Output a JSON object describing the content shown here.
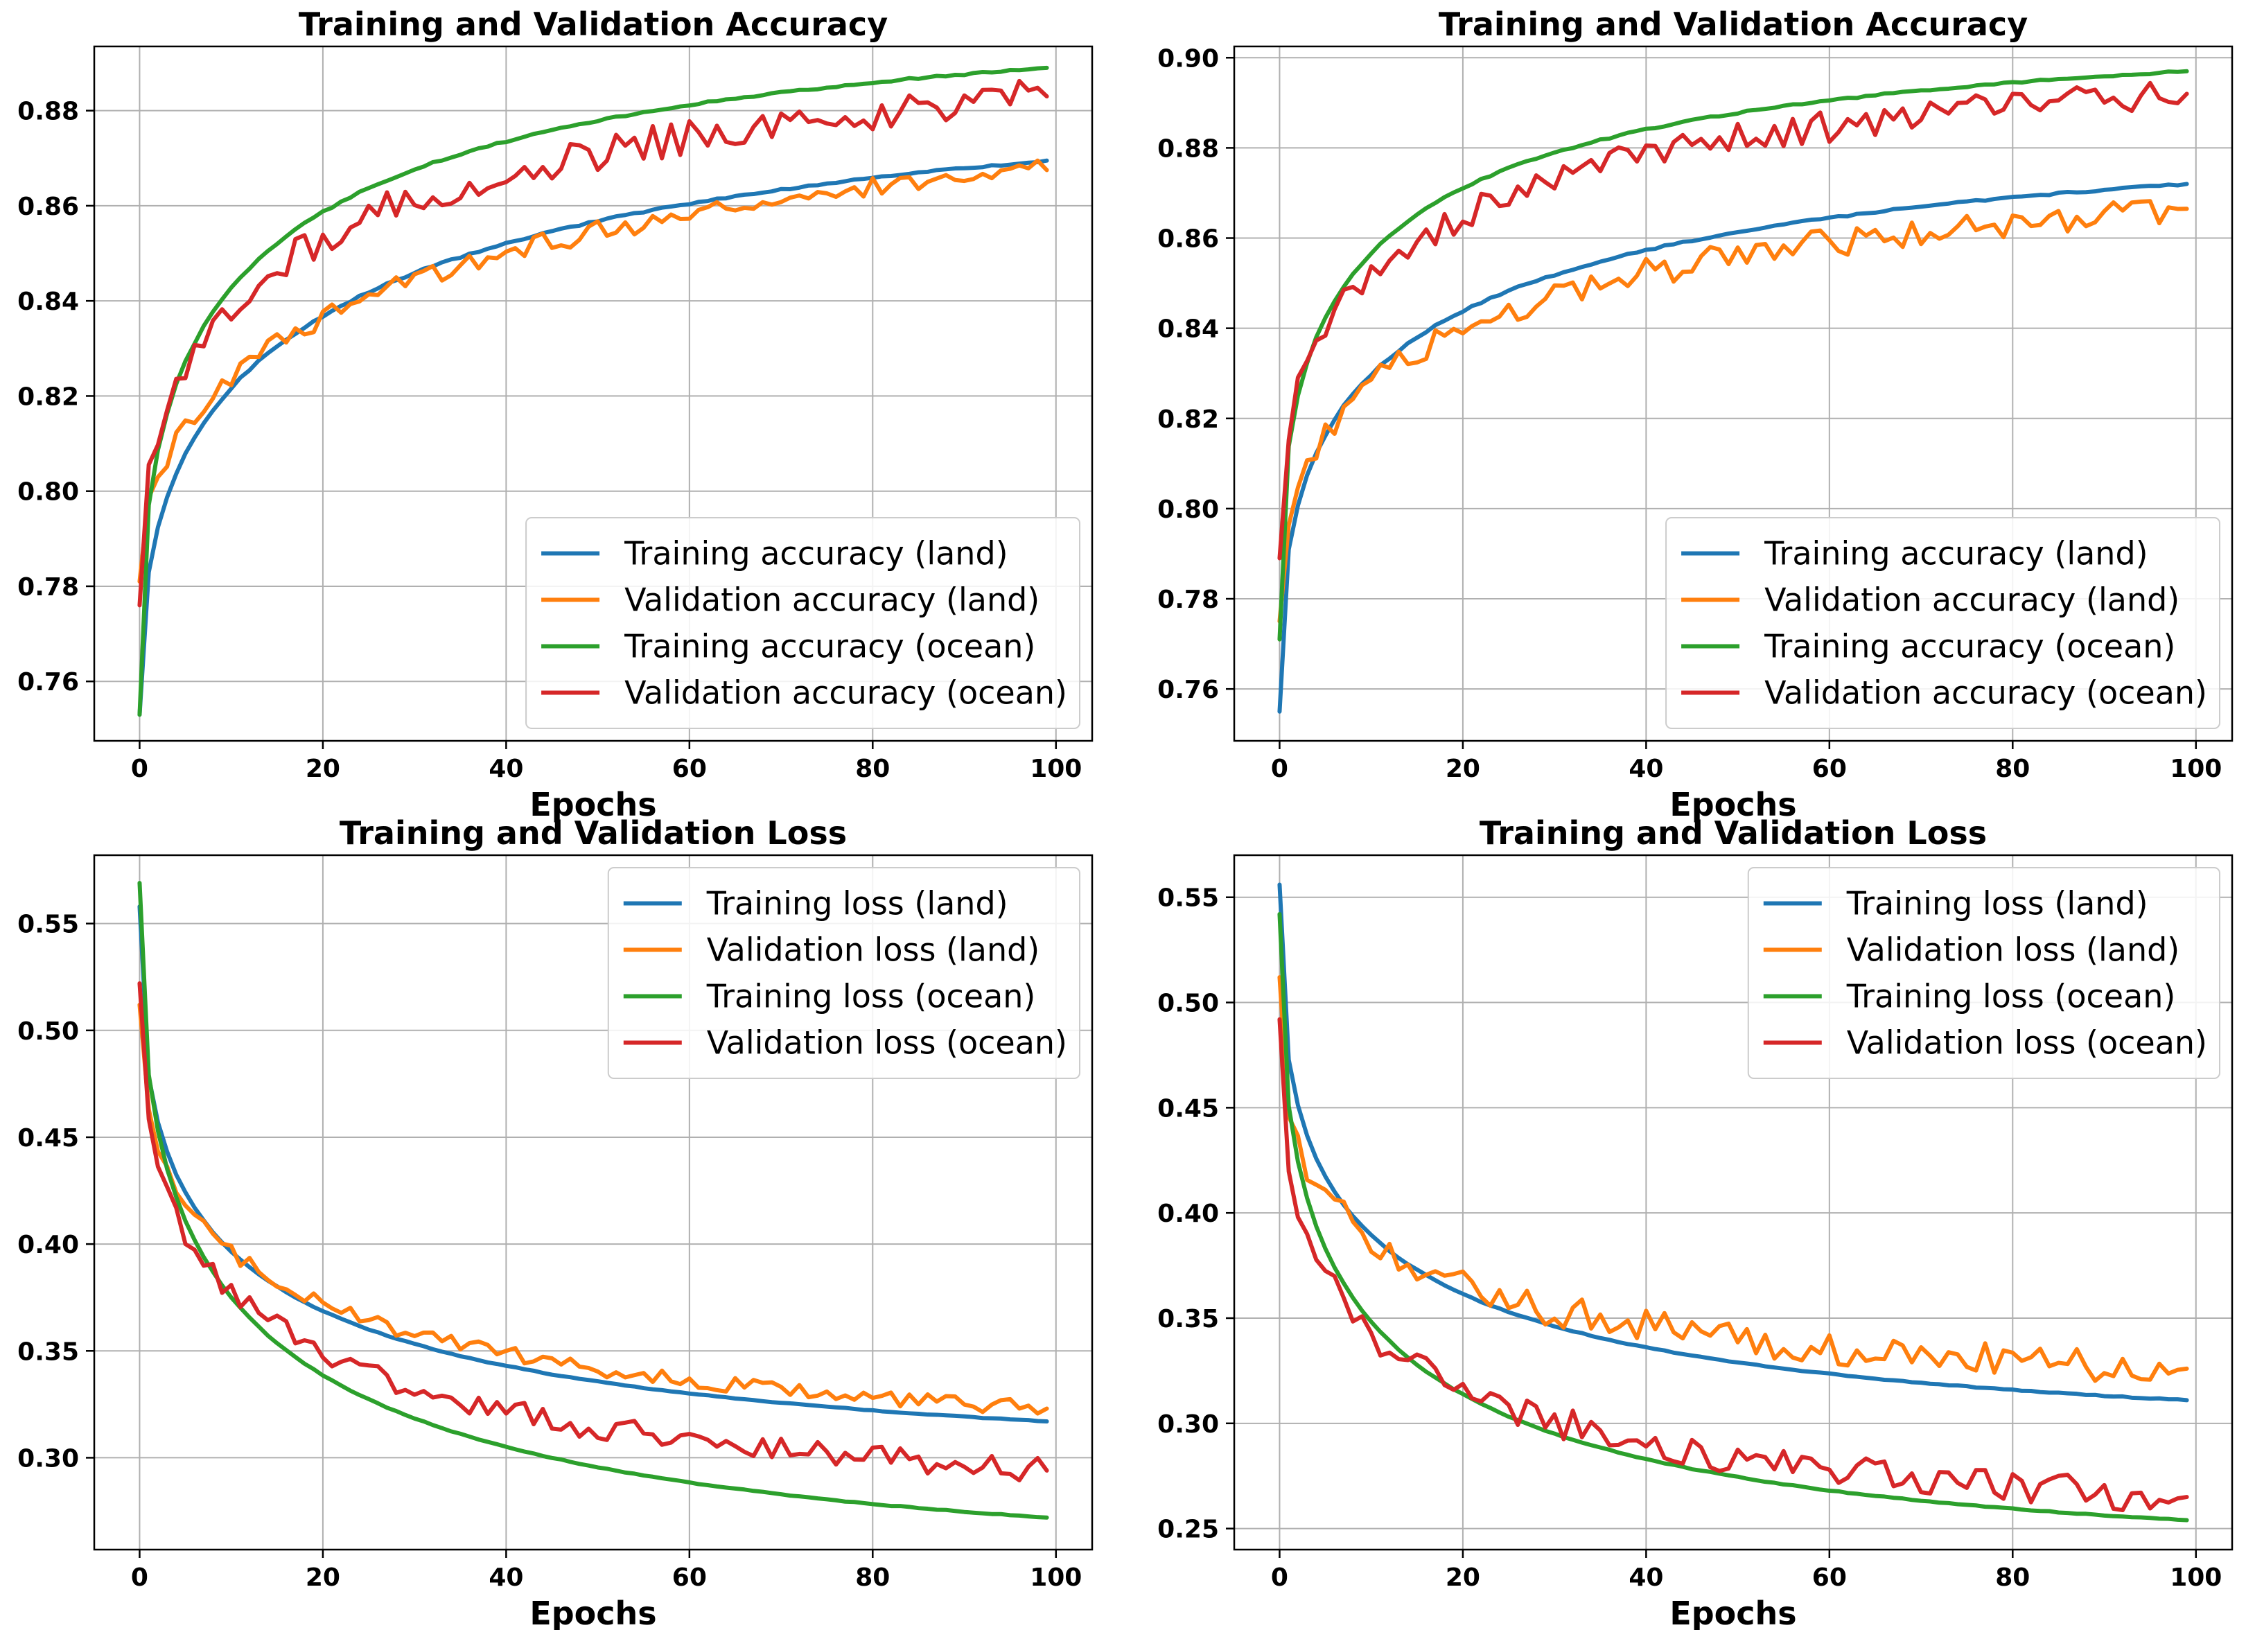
{
  "chart_data": [
    {
      "type": "line",
      "title": "Training and Validation Accuracy",
      "xlabel": "Epochs",
      "ylabel": "",
      "xlim": [
        -4.95,
        103.95
      ],
      "ylim": [
        0.7475,
        0.8935
      ],
      "xticks": [
        0,
        20,
        40,
        60,
        80,
        100
      ],
      "yticks": [
        0.76,
        0.78,
        0.8,
        0.82,
        0.84,
        0.86,
        0.88
      ],
      "ytick_decimals": 2,
      "grid": true,
      "legend_position": "lower-right",
      "series": [
        {
          "name": "Training accuracy (land)",
          "color": "#1f77b4",
          "start": 0.753,
          "end": 0.8695,
          "k": 2.0,
          "p": 0.45,
          "noise": 0.0002,
          "seed": 1
        },
        {
          "name": "Validation accuracy (land)",
          "color": "#ff7f0e",
          "start": 0.781,
          "end": 0.8675,
          "k": 1.6,
          "p": 0.5,
          "noise": 0.0022,
          "seed": 2
        },
        {
          "name": "Training accuracy (ocean)",
          "color": "#2ca02c",
          "start": 0.753,
          "end": 0.889,
          "k": 2.4,
          "p": 0.42,
          "noise": 0.0002,
          "seed": 3
        },
        {
          "name": "Validation accuracy (ocean)",
          "color": "#d62728",
          "start": 0.776,
          "end": 0.883,
          "k": 2.0,
          "p": 0.45,
          "noise": 0.0038,
          "seed": 4
        }
      ]
    },
    {
      "type": "line",
      "title": "Training and Validation Accuracy",
      "xlabel": "Epochs",
      "ylabel": "",
      "xlim": [
        -4.95,
        103.95
      ],
      "ylim": [
        0.7485,
        0.9025
      ],
      "xticks": [
        0,
        20,
        40,
        60,
        80,
        100
      ],
      "yticks": [
        0.76,
        0.78,
        0.8,
        0.82,
        0.84,
        0.86,
        0.88,
        0.9
      ],
      "ytick_decimals": 2,
      "grid": true,
      "legend_position": "lower-right",
      "series": [
        {
          "name": "Training accuracy (land)",
          "color": "#1f77b4",
          "start": 0.755,
          "end": 0.872,
          "k": 2.2,
          "p": 0.42,
          "noise": 0.0002,
          "seed": 5
        },
        {
          "name": "Validation accuracy (land)",
          "color": "#ff7f0e",
          "start": 0.775,
          "end": 0.8665,
          "k": 1.9,
          "p": 0.45,
          "noise": 0.0032,
          "seed": 6
        },
        {
          "name": "Training accuracy (ocean)",
          "color": "#2ca02c",
          "start": 0.771,
          "end": 0.897,
          "k": 2.6,
          "p": 0.42,
          "noise": 0.0002,
          "seed": 7
        },
        {
          "name": "Validation accuracy (ocean)",
          "color": "#d62728",
          "start": 0.789,
          "end": 0.892,
          "k": 2.2,
          "p": 0.45,
          "noise": 0.0035,
          "seed": 8
        }
      ]
    },
    {
      "type": "line",
      "title": "Training and Validation Loss",
      "xlabel": "Epochs",
      "ylabel": "",
      "xlim": [
        -4.95,
        103.95
      ],
      "ylim": [
        0.257,
        0.582
      ],
      "xticks": [
        0,
        20,
        40,
        60,
        80,
        100
      ],
      "yticks": [
        0.3,
        0.35,
        0.4,
        0.45,
        0.5,
        0.55
      ],
      "ytick_decimals": 2,
      "grid": true,
      "legend_position": "upper-right",
      "series": [
        {
          "name": "Training loss (land)",
          "color": "#1f77b4",
          "start": 0.558,
          "end": 0.317,
          "k": 2.5,
          "p": 0.42,
          "noise": 0.0002,
          "seed": 9
        },
        {
          "name": "Validation loss (land)",
          "color": "#ff7f0e",
          "start": 0.512,
          "end": 0.323,
          "k": 2.2,
          "p": 0.45,
          "noise": 0.0035,
          "seed": 10
        },
        {
          "name": "Training loss (ocean)",
          "color": "#2ca02c",
          "start": 0.569,
          "end": 0.272,
          "k": 2.6,
          "p": 0.45,
          "noise": 0.0002,
          "seed": 11
        },
        {
          "name": "Validation loss (ocean)",
          "color": "#d62728",
          "start": 0.522,
          "end": 0.294,
          "k": 2.4,
          "p": 0.45,
          "noise": 0.006,
          "seed": 12
        }
      ]
    },
    {
      "type": "line",
      "title": "Training and Validation Loss",
      "xlabel": "Epochs",
      "ylabel": "",
      "xlim": [
        -4.95,
        103.95
      ],
      "ylim": [
        0.24,
        0.57
      ],
      "xticks": [
        0,
        20,
        40,
        60,
        80,
        100
      ],
      "yticks": [
        0.25,
        0.3,
        0.35,
        0.4,
        0.45,
        0.5,
        0.55
      ],
      "ytick_decimals": 2,
      "grid": true,
      "legend_position": "upper-right",
      "series": [
        {
          "name": "Training loss (land)",
          "color": "#1f77b4",
          "start": 0.556,
          "end": 0.311,
          "k": 2.6,
          "p": 0.42,
          "noise": 0.0002,
          "seed": 13
        },
        {
          "name": "Validation loss (land)",
          "color": "#ff7f0e",
          "start": 0.512,
          "end": 0.326,
          "k": 2.5,
          "p": 0.42,
          "noise": 0.008,
          "seed": 14
        },
        {
          "name": "Training loss (ocean)",
          "color": "#2ca02c",
          "start": 0.542,
          "end": 0.254,
          "k": 2.8,
          "p": 0.45,
          "noise": 0.0002,
          "seed": 15
        },
        {
          "name": "Validation loss (ocean)",
          "color": "#d62728",
          "start": 0.492,
          "end": 0.265,
          "k": 2.6,
          "p": 0.45,
          "noise": 0.008,
          "seed": 16
        }
      ]
    }
  ]
}
